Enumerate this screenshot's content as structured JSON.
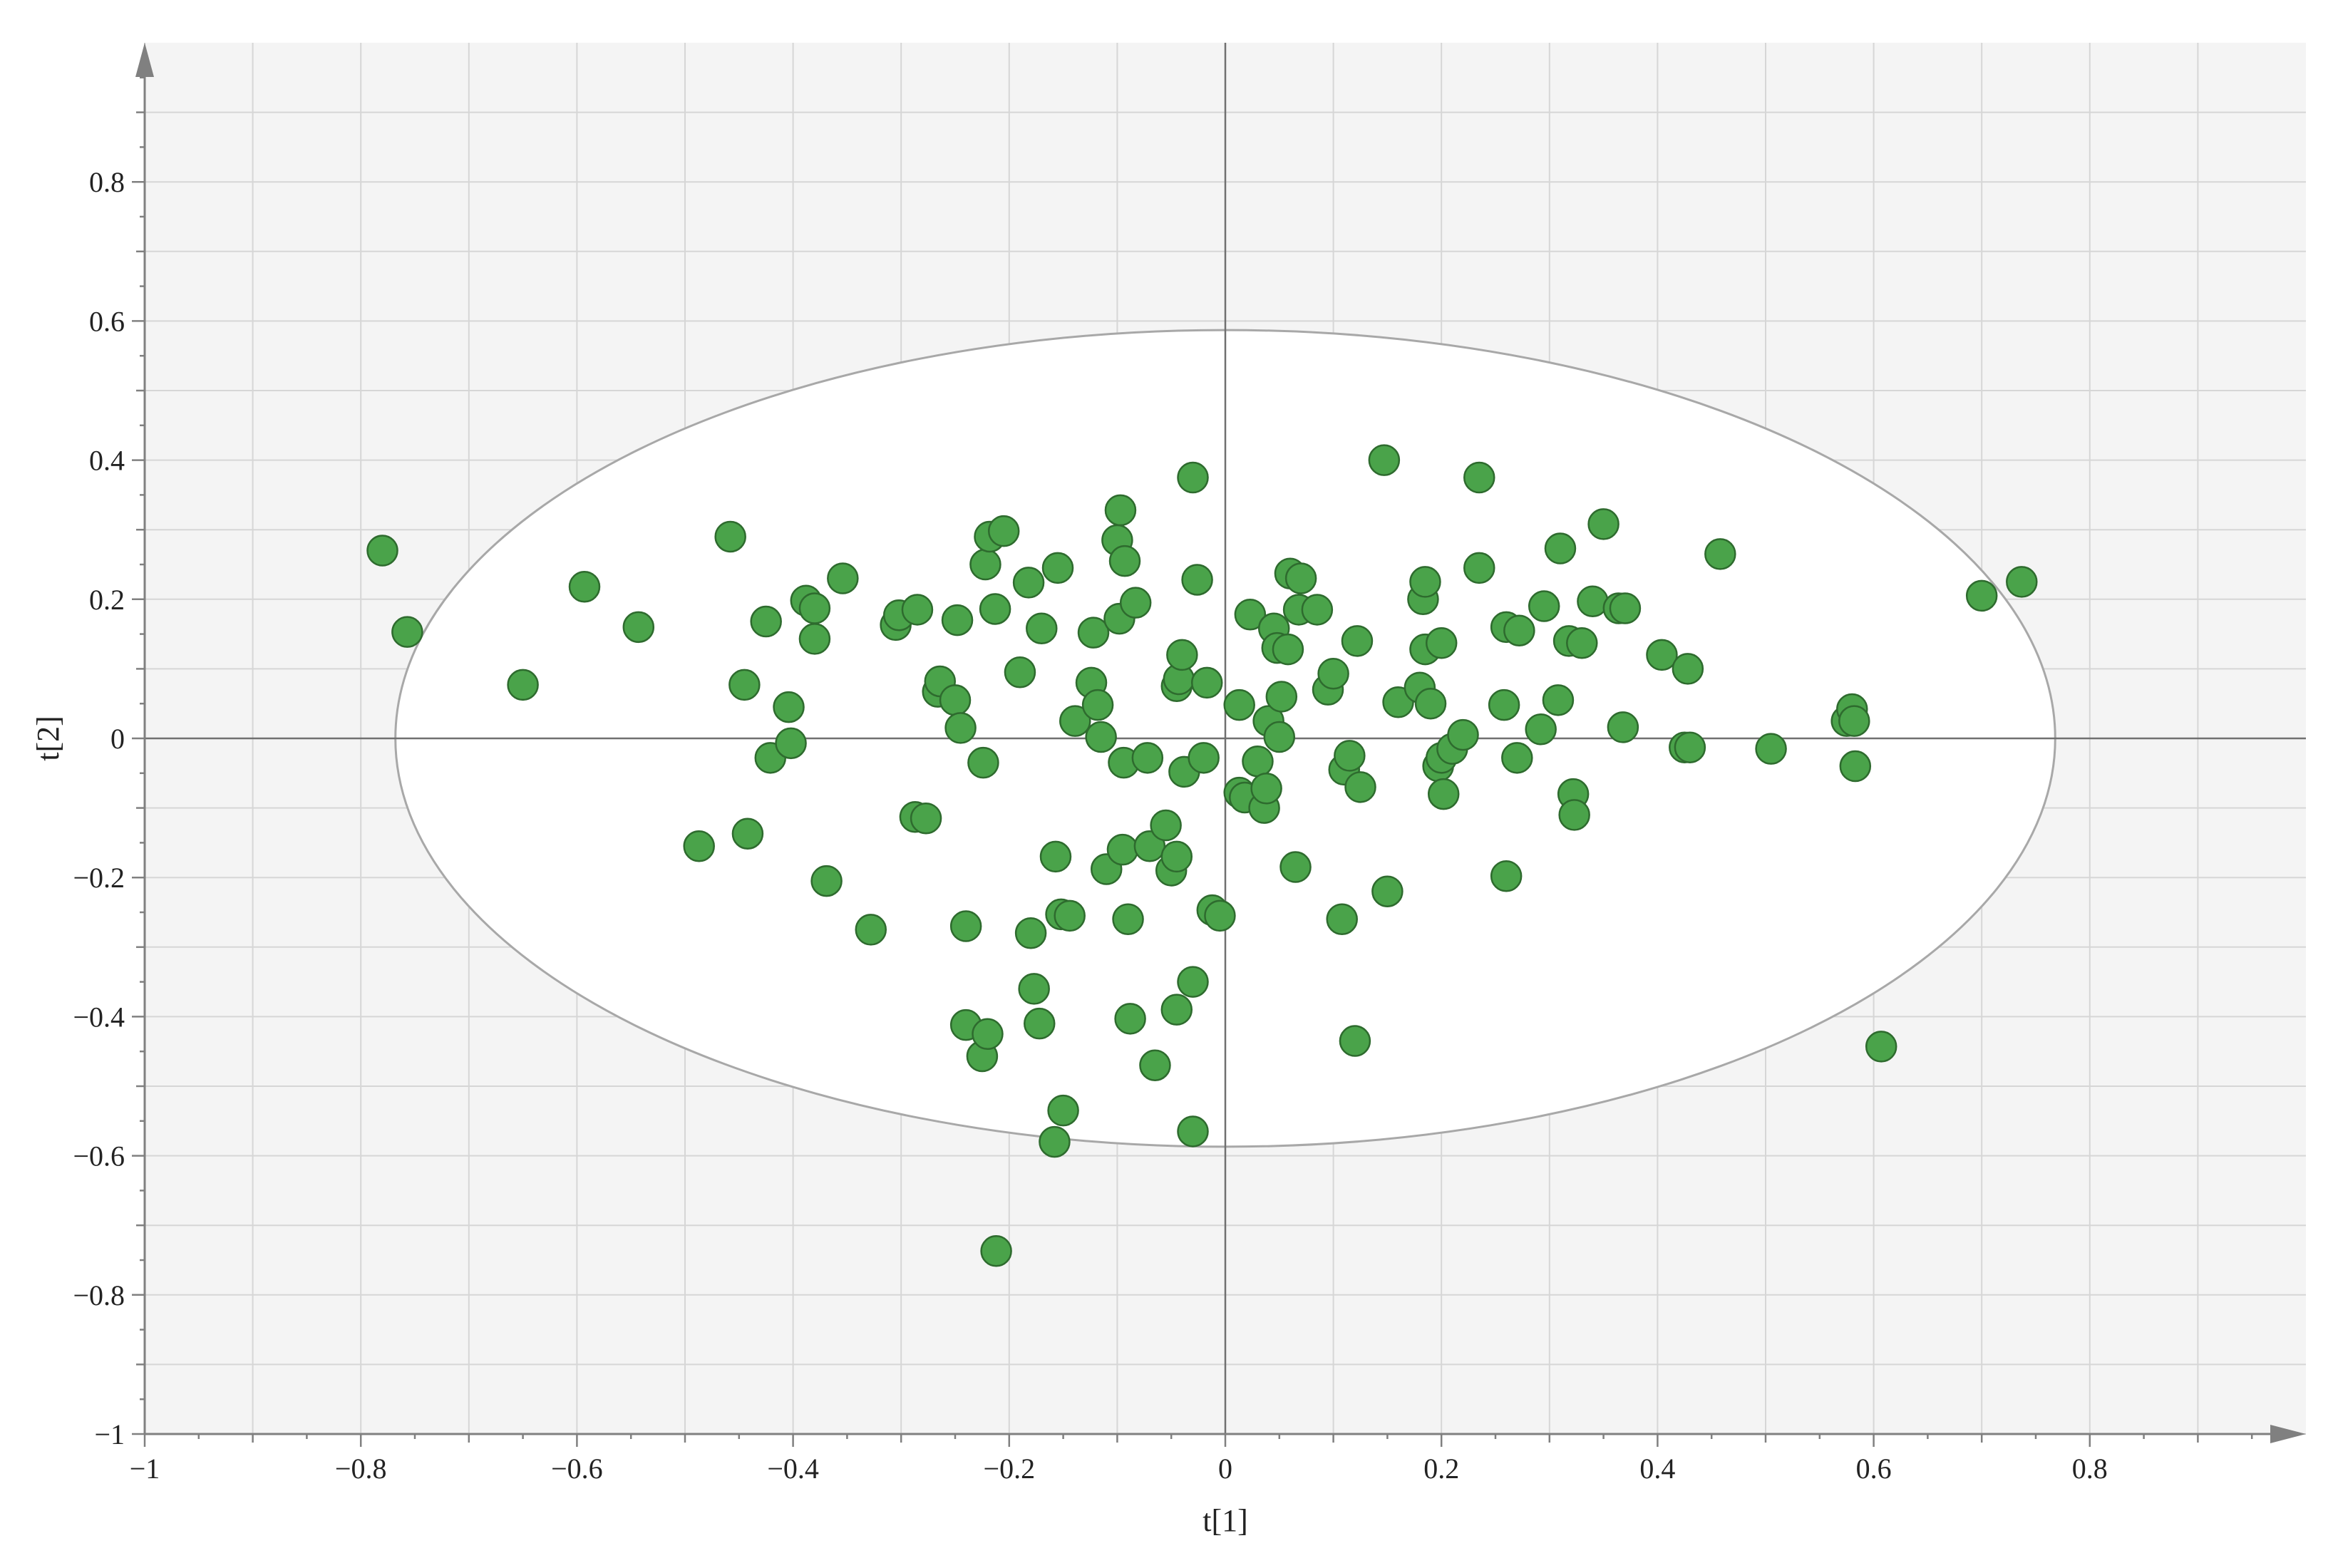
{
  "chart_data": {
    "type": "scatter",
    "title": "",
    "xlabel": "t[1]",
    "ylabel": "t[2]",
    "xlim": [
      -1,
      1
    ],
    "ylim": [
      -1,
      1
    ],
    "xticks": [
      -1,
      -0.8,
      -0.6,
      -0.4,
      -0.2,
      0,
      0.2,
      0.4,
      0.6,
      0.8
    ],
    "yticks": [
      -1,
      -0.8,
      -0.6,
      -0.4,
      -0.2,
      0,
      0.2,
      0.4,
      0.6,
      0.8
    ],
    "xtick_labels": [
      "−1",
      "−0.8",
      "−0.6",
      "−0.4",
      "−0.2",
      "0",
      "0.2",
      "0.4",
      "0.6",
      "0.8"
    ],
    "ytick_labels": [
      "−1",
      "−0.8",
      "−0.6",
      "−0.4",
      "−0.2",
      "0",
      "0.2",
      "0.4",
      "0.6",
      "0.8"
    ],
    "grid": true,
    "ellipse": {
      "cx": 0,
      "cy": 0,
      "rx": 0.768,
      "ry": 0.587
    },
    "colors": {
      "point_fill": "#4aa34a",
      "point_stroke": "#2e6b2e",
      "plot_bg": "#f4f4f4",
      "ellipse_fill": "#ffffff",
      "ellipse_stroke": "#a8a8a8",
      "grid": "#d6d6d6",
      "axis": "#808080"
    },
    "points": [
      [
        -0.78,
        0.27
      ],
      [
        -0.757,
        0.153
      ],
      [
        -0.65,
        0.077
      ],
      [
        -0.593,
        0.218
      ],
      [
        -0.543,
        0.16
      ],
      [
        -0.458,
        0.29
      ],
      [
        -0.487,
        -0.155
      ],
      [
        -0.445,
        0.077
      ],
      [
        -0.442,
        -0.137
      ],
      [
        -0.425,
        0.168
      ],
      [
        -0.421,
        -0.028
      ],
      [
        -0.404,
        0.045
      ],
      [
        -0.402,
        -0.007
      ],
      [
        -0.388,
        0.198
      ],
      [
        -0.38,
        0.187
      ],
      [
        -0.38,
        0.143
      ],
      [
        -0.369,
        -0.205
      ],
      [
        -0.354,
        0.23
      ],
      [
        -0.328,
        -0.275
      ],
      [
        -0.305,
        0.163
      ],
      [
        -0.302,
        0.177
      ],
      [
        -0.287,
        -0.113
      ],
      [
        -0.285,
        0.185
      ],
      [
        -0.277,
        -0.115
      ],
      [
        -0.266,
        0.067
      ],
      [
        -0.264,
        0.082
      ],
      [
        -0.25,
        0.055
      ],
      [
        -0.248,
        0.17
      ],
      [
        -0.245,
        0.015
      ],
      [
        -0.24,
        -0.412
      ],
      [
        -0.24,
        -0.27
      ],
      [
        -0.224,
        -0.035
      ],
      [
        -0.225,
        -0.457
      ],
      [
        -0.22,
        -0.425
      ],
      [
        -0.222,
        0.25
      ],
      [
        -0.218,
        0.29
      ],
      [
        -0.213,
        0.186
      ],
      [
        -0.212,
        -0.737
      ],
      [
        -0.205,
        0.298
      ],
      [
        -0.19,
        0.095
      ],
      [
        -0.182,
        0.224
      ],
      [
        -0.18,
        -0.28
      ],
      [
        -0.177,
        -0.36
      ],
      [
        -0.172,
        -0.41
      ],
      [
        -0.17,
        0.158
      ],
      [
        -0.158,
        -0.58
      ],
      [
        -0.157,
        -0.17
      ],
      [
        -0.155,
        0.245
      ],
      [
        -0.152,
        -0.253
      ],
      [
        -0.15,
        -0.535
      ],
      [
        -0.144,
        -0.255
      ],
      [
        -0.139,
        0.025
      ],
      [
        -0.124,
        0.08
      ],
      [
        -0.122,
        0.152
      ],
      [
        -0.118,
        0.048
      ],
      [
        -0.115,
        0.002
      ],
      [
        -0.11,
        -0.188
      ],
      [
        -0.1,
        0.285
      ],
      [
        -0.098,
        0.172
      ],
      [
        -0.097,
        0.328
      ],
      [
        -0.095,
        -0.16
      ],
      [
        -0.094,
        -0.035
      ],
      [
        -0.093,
        0.255
      ],
      [
        -0.09,
        -0.26
      ],
      [
        -0.088,
        -0.403
      ],
      [
        -0.083,
        0.195
      ],
      [
        -0.072,
        -0.028
      ],
      [
        -0.07,
        -0.155
      ],
      [
        -0.065,
        -0.47
      ],
      [
        -0.055,
        -0.125
      ],
      [
        -0.05,
        -0.19
      ],
      [
        -0.045,
        -0.17
      ],
      [
        -0.045,
        -0.39
      ],
      [
        -0.045,
        0.075
      ],
      [
        -0.043,
        0.085
      ],
      [
        -0.04,
        0.12
      ],
      [
        -0.038,
        -0.048
      ],
      [
        -0.03,
        0.375
      ],
      [
        -0.03,
        -0.35
      ],
      [
        -0.03,
        -0.565
      ],
      [
        -0.026,
        0.228
      ],
      [
        -0.02,
        -0.028
      ],
      [
        -0.017,
        0.08
      ],
      [
        -0.012,
        -0.247
      ],
      [
        -0.005,
        -0.255
      ],
      [
        0.013,
        0.048
      ],
      [
        0.013,
        -0.078
      ],
      [
        0.018,
        -0.085
      ],
      [
        0.023,
        0.178
      ],
      [
        0.03,
        -0.033
      ],
      [
        0.036,
        -0.1
      ],
      [
        0.038,
        -0.072
      ],
      [
        0.04,
        0.025
      ],
      [
        0.045,
        0.158
      ],
      [
        0.048,
        0.13
      ],
      [
        0.05,
        0.002
      ],
      [
        0.052,
        0.06
      ],
      [
        0.058,
        0.128
      ],
      [
        0.06,
        0.237
      ],
      [
        0.065,
        -0.185
      ],
      [
        0.068,
        0.185
      ],
      [
        0.07,
        0.23
      ],
      [
        0.085,
        0.185
      ],
      [
        0.095,
        0.07
      ],
      [
        0.1,
        0.093
      ],
      [
        0.108,
        -0.26
      ],
      [
        0.11,
        -0.045
      ],
      [
        0.115,
        -0.025
      ],
      [
        0.12,
        -0.435
      ],
      [
        0.122,
        0.14
      ],
      [
        0.125,
        -0.07
      ],
      [
        0.147,
        0.4
      ],
      [
        0.15,
        -0.22
      ],
      [
        0.16,
        0.052
      ],
      [
        0.18,
        0.073
      ],
      [
        0.183,
        0.2
      ],
      [
        0.185,
        0.128
      ],
      [
        0.185,
        0.225
      ],
      [
        0.19,
        0.05
      ],
      [
        0.197,
        -0.04
      ],
      [
        0.2,
        0.137
      ],
      [
        0.2,
        -0.028
      ],
      [
        0.202,
        -0.08
      ],
      [
        0.21,
        -0.015
      ],
      [
        0.22,
        0.005
      ],
      [
        0.235,
        0.245
      ],
      [
        0.235,
        0.375
      ],
      [
        0.26,
        -0.198
      ],
      [
        0.258,
        0.048
      ],
      [
        0.26,
        0.16
      ],
      [
        0.27,
        -0.028
      ],
      [
        0.272,
        0.155
      ],
      [
        0.292,
        0.013
      ],
      [
        0.295,
        0.19
      ],
      [
        0.308,
        0.055
      ],
      [
        0.31,
        0.273
      ],
      [
        0.318,
        0.14
      ],
      [
        0.322,
        -0.08
      ],
      [
        0.323,
        -0.11
      ],
      [
        0.33,
        0.137
      ],
      [
        0.34,
        0.197
      ],
      [
        0.35,
        0.308
      ],
      [
        0.364,
        0.187
      ],
      [
        0.37,
        0.187
      ],
      [
        0.368,
        0.016
      ],
      [
        0.404,
        0.12
      ],
      [
        0.425,
        -0.013
      ],
      [
        0.428,
        0.1
      ],
      [
        0.43,
        -0.013
      ],
      [
        0.458,
        0.265
      ],
      [
        0.505,
        -0.015
      ],
      [
        0.575,
        0.025
      ],
      [
        0.58,
        0.042
      ],
      [
        0.582,
        0.025
      ],
      [
        0.583,
        -0.04
      ],
      [
        0.607,
        -0.443
      ],
      [
        0.7,
        0.205
      ],
      [
        0.737,
        0.225
      ]
    ]
  }
}
